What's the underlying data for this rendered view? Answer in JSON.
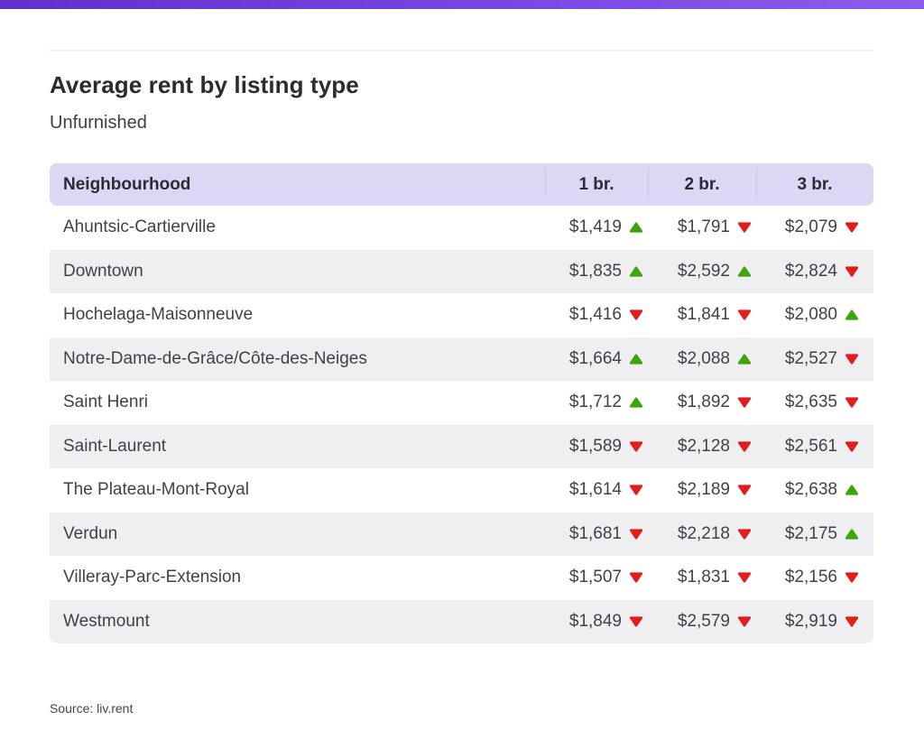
{
  "colors": {
    "accent_bar_left": "#6030cc",
    "accent_bar_right": "#8a5cf0",
    "header_bg": "#dcd7f5",
    "row_alt_bg": "#efeff1",
    "divider": "#f1f1f3",
    "trend_up_green": "#3fa30d",
    "trend_down_red": "#e11d1d",
    "title_text": "#2b2b33",
    "body_text": "#414149"
  },
  "chart_data": {
    "type": "table",
    "title": "Average rent by listing type",
    "subtitle": "Unfurnished",
    "source": "Source: liv.rent",
    "columns": [
      "Neighbourhood",
      "1 br.",
      "2 br.",
      "3 br."
    ],
    "rows": [
      {
        "neighbourhood": "Ahuntsic-Cartierville",
        "values": [
          1419,
          1791,
          2079
        ],
        "display": [
          "$1,419",
          "$1,791",
          "$2,079"
        ],
        "trends": [
          "up",
          "down",
          "down"
        ]
      },
      {
        "neighbourhood": "Downtown",
        "values": [
          1835,
          2592,
          2824
        ],
        "display": [
          "$1,835",
          "$2,592",
          "$2,824"
        ],
        "trends": [
          "up",
          "up",
          "down"
        ]
      },
      {
        "neighbourhood": "Hochelaga-Maisonneuve",
        "values": [
          1416,
          1841,
          2080
        ],
        "display": [
          "$1,416",
          "$1,841",
          "$2,080"
        ],
        "trends": [
          "down",
          "down",
          "up"
        ]
      },
      {
        "neighbourhood": "Notre-Dame-de-Grâce/Côte-des-Neiges",
        "values": [
          1664,
          2088,
          2527
        ],
        "display": [
          "$1,664",
          "$2,088",
          "$2,527"
        ],
        "trends": [
          "up",
          "up",
          "down"
        ]
      },
      {
        "neighbourhood": "Saint Henri",
        "values": [
          1712,
          1892,
          2635
        ],
        "display": [
          "$1,712",
          "$1,892",
          "$2,635"
        ],
        "trends": [
          "up",
          "down",
          "down"
        ]
      },
      {
        "neighbourhood": "Saint-Laurent",
        "values": [
          1589,
          2128,
          2561
        ],
        "display": [
          "$1,589",
          "$2,128",
          "$2,561"
        ],
        "trends": [
          "down",
          "down",
          "down"
        ]
      },
      {
        "neighbourhood": "The Plateau-Mont-Royal",
        "values": [
          1614,
          2189,
          2638
        ],
        "display": [
          "$1,614",
          "$2,189",
          "$2,638"
        ],
        "trends": [
          "down",
          "down",
          "up"
        ]
      },
      {
        "neighbourhood": "Verdun",
        "values": [
          1681,
          2218,
          2175
        ],
        "display": [
          "$1,681",
          "$2,218",
          "$2,175"
        ],
        "trends": [
          "down",
          "down",
          "up"
        ]
      },
      {
        "neighbourhood": "Villeray-Parc-Extension",
        "values": [
          1507,
          1831,
          2156
        ],
        "display": [
          "$1,507",
          "$1,831",
          "$2,156"
        ],
        "trends": [
          "down",
          "down",
          "down"
        ]
      },
      {
        "neighbourhood": "Westmount",
        "values": [
          1849,
          2579,
          2919
        ],
        "display": [
          "$1,849",
          "$2,579",
          "$2,919"
        ],
        "trends": [
          "down",
          "down",
          "down"
        ]
      }
    ]
  }
}
